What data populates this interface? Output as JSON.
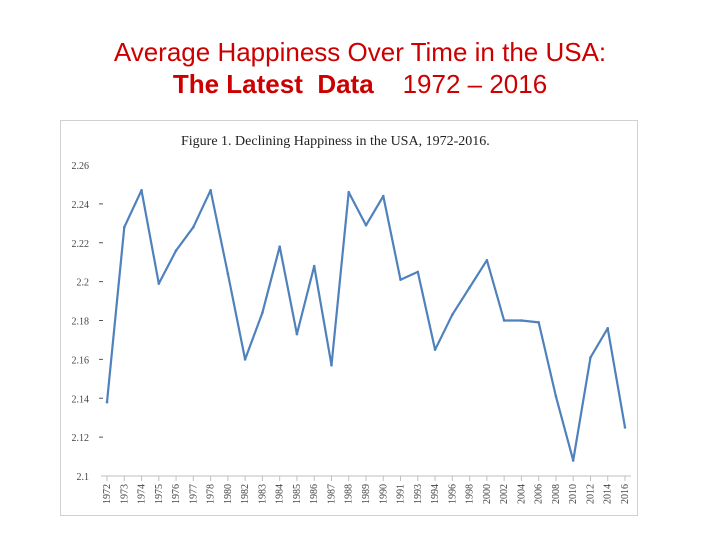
{
  "slide": {
    "title_line1": "Average Happiness Over Time in the USA:",
    "title_line2_bold": "The Latest  Data",
    "title_line2_rest": "    1972 – 2016",
    "title_color": "#cc0000"
  },
  "chart_data": {
    "type": "line",
    "title": "Figure 1.  Declining Happiness in the USA, 1972-2016.",
    "xlabel": "",
    "ylabel": "",
    "ylim": [
      2.1,
      2.26
    ],
    "y_ticks": [
      "2.1",
      "2.12",
      "2.14",
      "2.16",
      "2.18",
      "2.2",
      "2.22",
      "2.24",
      "2.26"
    ],
    "x_ticks": [
      "1972",
      "1973",
      "1974",
      "1975",
      "1976",
      "1977",
      "1978",
      "1980",
      "1982",
      "1983",
      "1984",
      "1985",
      "1986",
      "1987",
      "1988",
      "1989",
      "1990",
      "1991",
      "1993",
      "1994",
      "1996",
      "1998",
      "2000",
      "2002",
      "2004",
      "2006",
      "2008",
      "2010",
      "2012",
      "2014",
      "2016"
    ],
    "x": [
      "1972",
      "1973",
      "1974",
      "1975",
      "1976",
      "1977",
      "1978",
      "1980",
      "1982",
      "1983",
      "1984",
      "1985",
      "1986",
      "1987",
      "1988",
      "1989",
      "1990",
      "1991",
      "1993",
      "1994",
      "1996",
      "1998",
      "2000",
      "2002",
      "2004",
      "2006",
      "2008",
      "2010",
      "2012",
      "2014",
      "2016"
    ],
    "series": [
      {
        "values": [
          2.138,
          2.228,
          2.247,
          2.199,
          2.216,
          2.228,
          2.247,
          2.204,
          2.16,
          2.184,
          2.218,
          2.173,
          2.208,
          2.157,
          2.246,
          2.229,
          2.244,
          2.201,
          2.205,
          2.165,
          2.183,
          2.197,
          2.211,
          2.18,
          2.18,
          2.179,
          2.141,
          2.108,
          2.161,
          2.176,
          2.125
        ],
        "color": "#4f81bd"
      }
    ],
    "grid": false
  }
}
